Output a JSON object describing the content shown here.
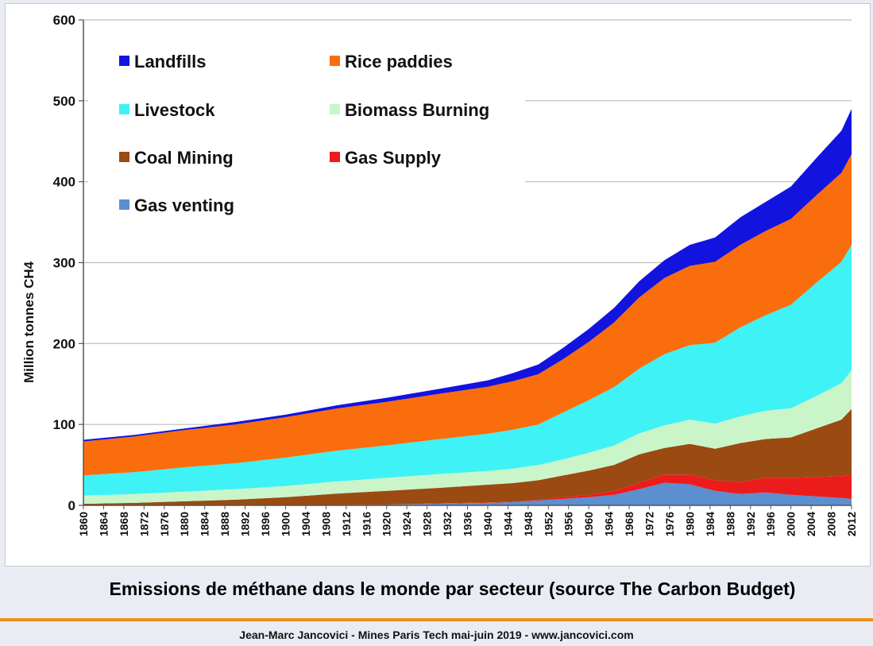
{
  "caption": "Emissions de méthane dans le monde par secteur (source The Carbon Budget)",
  "footer": "Jean-Marc Jancovici - Mines Paris Tech mai-juin 2019 - www.jancovici.com",
  "colors": {
    "gas_venting": "#5b8fd0",
    "gas_supply": "#ec1c1c",
    "coal_mining": "#9b4a12",
    "biomass_burning": "#c9f5c9",
    "livestock": "#3ff2f5",
    "rice_paddies": "#fa6d0c",
    "landfills": "#1313e0",
    "accent_rule": "#f0901e"
  },
  "chart_data": {
    "type": "area",
    "stacked": true,
    "title": "",
    "xlabel": "",
    "ylabel": "Million tonnes CH4",
    "ylim": [
      0,
      600
    ],
    "xlim": [
      1860,
      2012
    ],
    "y_ticks": [
      0,
      100,
      200,
      300,
      400,
      500,
      600
    ],
    "x_ticks": [
      "1860",
      "1864",
      "1868",
      "1872",
      "1876",
      "1880",
      "1884",
      "1888",
      "1892",
      "1896",
      "1900",
      "1904",
      "1908",
      "1912",
      "1916",
      "1920",
      "1924",
      "1928",
      "1932",
      "1936",
      "1940",
      "1944",
      "1948",
      "1952",
      "1956",
      "1960",
      "1964",
      "1968",
      "1972",
      "1976",
      "1980",
      "1984",
      "1988",
      "1992",
      "1996",
      "2000",
      "2004",
      "2008",
      "2012"
    ],
    "grid": "horizontal",
    "legend": [
      {
        "name": "Landfills",
        "key": "landfills"
      },
      {
        "name": "Rice paddies",
        "key": "rice_paddies"
      },
      {
        "name": "Livestock",
        "key": "livestock"
      },
      {
        "name": "Biomass Burning",
        "key": "biomass_burning"
      },
      {
        "name": "Coal Mining",
        "key": "coal_mining"
      },
      {
        "name": "Gas Supply",
        "key": "gas_supply"
      },
      {
        "name": "Gas venting",
        "key": "gas_venting"
      }
    ],
    "x": [
      1860,
      1870,
      1880,
      1890,
      1900,
      1910,
      1920,
      1930,
      1940,
      1945,
      1950,
      1955,
      1960,
      1965,
      1970,
      1975,
      1980,
      1985,
      1990,
      1995,
      2000,
      2005,
      2010,
      2012
    ],
    "series": [
      {
        "name": "Gas venting",
        "key": "gas_venting",
        "values": [
          0,
          0,
          0,
          0,
          0,
          0.5,
          1,
          2,
          3,
          4,
          6,
          8,
          10,
          13,
          20,
          28,
          26,
          18,
          14,
          16,
          13,
          11,
          9,
          8
        ]
      },
      {
        "name": "Gas Supply",
        "key": "gas_supply",
        "values": [
          0,
          0,
          0,
          0,
          0,
          0,
          0,
          0.5,
          0.5,
          0.5,
          1,
          2,
          3,
          5,
          8,
          10,
          12,
          13,
          15,
          18,
          21,
          24,
          27,
          29
        ]
      },
      {
        "name": "Coal Mining",
        "key": "coal_mining",
        "values": [
          2,
          3,
          5,
          7,
          10,
          14,
          17,
          19,
          22,
          23,
          24,
          27,
          30,
          32,
          35,
          33,
          38,
          39,
          48,
          48,
          50,
          60,
          70,
          82
        ]
      },
      {
        "name": "Biomass Burning",
        "key": "biomass_burning",
        "values": [
          10,
          11,
          12,
          13,
          14,
          15,
          16,
          17,
          17,
          18,
          19,
          20,
          22,
          24,
          26,
          28,
          30,
          31,
          33,
          35,
          36,
          40,
          45,
          48
        ]
      },
      {
        "name": "Livestock",
        "key": "livestock",
        "values": [
          25,
          27,
          30,
          32,
          35,
          38,
          40,
          43,
          46,
          48,
          50,
          58,
          65,
          72,
          80,
          88,
          92,
          100,
          110,
          118,
          128,
          140,
          150,
          155
        ]
      },
      {
        "name": "Rice paddies",
        "key": "rice_paddies",
        "values": [
          42,
          44,
          46,
          48,
          50,
          52,
          54,
          56,
          58,
          60,
          62,
          66,
          72,
          80,
          88,
          94,
          98,
          100,
          102,
          104,
          106,
          108,
          110,
          112
        ]
      },
      {
        "name": "Landfills",
        "key": "landfills",
        "values": [
          2,
          2,
          2,
          3,
          3,
          4,
          5,
          6,
          8,
          10,
          12,
          14,
          16,
          18,
          20,
          22,
          26,
          30,
          34,
          36,
          40,
          46,
          52,
          56
        ]
      }
    ]
  }
}
